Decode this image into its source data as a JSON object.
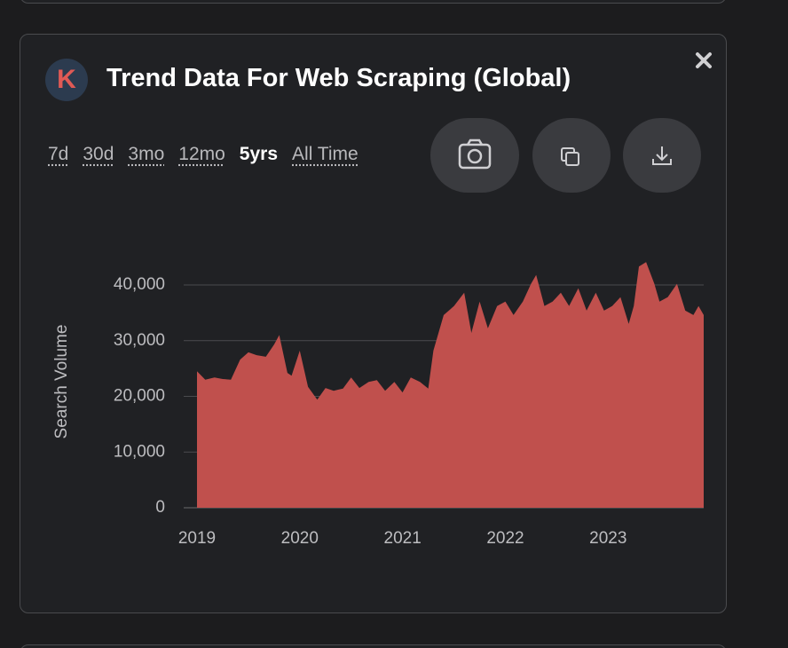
{
  "panel": {
    "logo_letter": "K",
    "title": "Trend Data For Web Scraping (Global)",
    "ranges": [
      "7d",
      "30d",
      "3mo",
      "12mo",
      "5yrs",
      "All Time"
    ],
    "selected_range_index": 4
  },
  "chart_data": {
    "type": "area",
    "y_label": "Search Volume",
    "color": "#c0504d",
    "grid": true,
    "x": [
      2019.0,
      2019.08,
      2019.17,
      2019.25,
      2019.33,
      2019.42,
      2019.5,
      2019.58,
      2019.67,
      2019.75,
      2019.8,
      2019.88,
      2019.92,
      2020.0,
      2020.08,
      2020.17,
      2020.25,
      2020.33,
      2020.42,
      2020.5,
      2020.58,
      2020.67,
      2020.75,
      2020.83,
      2020.92,
      2021.0,
      2021.08,
      2021.17,
      2021.25,
      2021.3,
      2021.4,
      2021.5,
      2021.6,
      2021.67,
      2021.75,
      2021.83,
      2021.92,
      2022.0,
      2022.08,
      2022.17,
      2022.25,
      2022.3,
      2022.38,
      2022.46,
      2022.54,
      2022.62,
      2022.71,
      2022.79,
      2022.88,
      2022.96,
      2023.04,
      2023.12,
      2023.2,
      2023.25,
      2023.3,
      2023.37,
      2023.45,
      2023.5,
      2023.58,
      2023.67,
      2023.75,
      2023.83,
      2023.88,
      2023.93
    ],
    "values": [
      24500,
      23000,
      23400,
      23100,
      23000,
      26600,
      27900,
      27400,
      27100,
      29300,
      31000,
      24200,
      23700,
      28200,
      21700,
      19400,
      21500,
      21000,
      21400,
      23400,
      21500,
      22600,
      22900,
      21000,
      22600,
      20700,
      23400,
      22600,
      21400,
      28200,
      34600,
      36200,
      38600,
      31400,
      37000,
      32200,
      36200,
      37000,
      34600,
      37000,
      40200,
      41800,
      36200,
      37000,
      38600,
      36200,
      39400,
      35400,
      38600,
      35400,
      36200,
      37800,
      33000,
      36200,
      43300,
      44100,
      40200,
      37000,
      37800,
      40200,
      35400,
      34600,
      36200,
      34600
    ],
    "xlim": [
      2019,
      2023.93
    ],
    "xticks": [
      2019,
      2020,
      2021,
      2022,
      2023
    ],
    "ylim": [
      0,
      45000
    ],
    "yticks": [
      0,
      {
        "value": 10000,
        "label": "10,000"
      },
      {
        "value": 20000,
        "label": "20,000"
      },
      {
        "value": 30000,
        "label": "30,000"
      },
      {
        "value": 40000,
        "label": "40,000"
      }
    ]
  }
}
